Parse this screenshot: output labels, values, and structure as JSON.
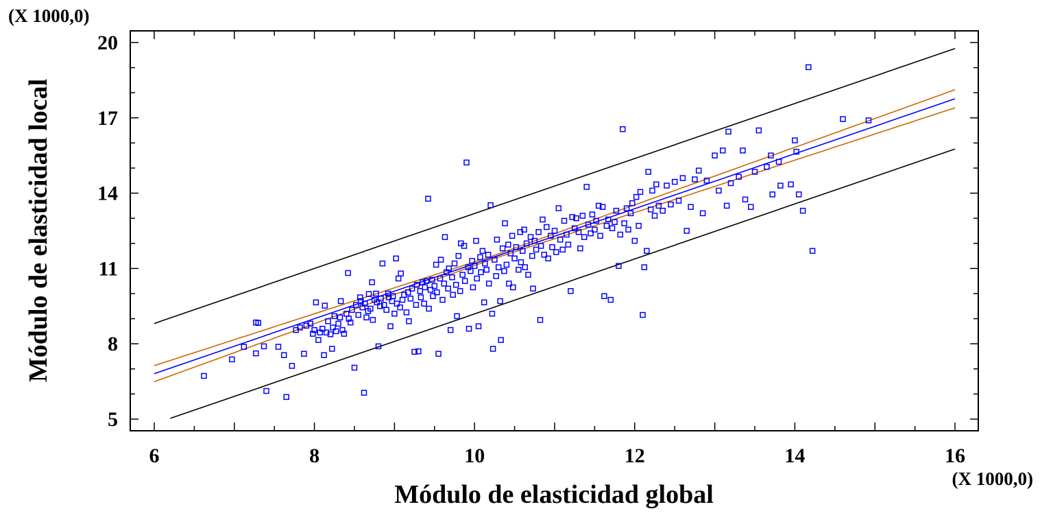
{
  "chart_data": {
    "type": "scatter",
    "title": "",
    "xlabel": "Módulo de elasticidad global",
    "ylabel": "Módulo de elasticidad local",
    "x_multiplier_label": "(X 1000,0)",
    "y_multiplier_label": "(X 1000,0)",
    "xlim": [
      6,
      16
    ],
    "ylim": [
      5,
      20
    ],
    "x_ticks": [
      6,
      8,
      10,
      12,
      14,
      16
    ],
    "y_ticks": [
      5,
      8,
      11,
      14,
      17,
      20
    ],
    "x_tick_labels": [
      "6",
      "8",
      "10",
      "12",
      "14",
      "16"
    ],
    "y_tick_labels": [
      "5",
      "8",
      "11",
      "14",
      "17",
      "20"
    ],
    "grid": false,
    "legend": "none",
    "colors": {
      "points": "#0000ff",
      "fit": "#0000ff",
      "confidence": "#cc6600",
      "prediction": "#000000",
      "axis": "#000000"
    },
    "fit_line": {
      "intercept": 0.24,
      "slope": 1.095
    },
    "confidence_band_halfwidth": {
      "at_x_min": 0.32,
      "at_x_max": 0.36,
      "center": 10.2,
      "center_halfwidth": 0.06
    },
    "prediction_band_halfwidth": 2.0,
    "series": [
      {
        "type": "scatter",
        "points": [
          [
            6.62,
            6.72
          ],
          [
            6.97,
            7.38
          ],
          [
            7.12,
            7.88
          ],
          [
            7.27,
            7.62
          ],
          [
            7.27,
            8.85
          ],
          [
            7.3,
            8.83
          ],
          [
            7.37,
            7.9
          ],
          [
            7.4,
            6.12
          ],
          [
            7.55,
            7.88
          ],
          [
            7.62,
            7.55
          ],
          [
            7.65,
            5.88
          ],
          [
            7.72,
            7.12
          ],
          [
            7.77,
            8.55
          ],
          [
            7.82,
            8.65
          ],
          [
            7.87,
            7.6
          ],
          [
            7.9,
            8.72
          ],
          [
            7.95,
            8.8
          ],
          [
            7.98,
            8.4
          ],
          [
            8.0,
            8.55
          ],
          [
            8.02,
            9.65
          ],
          [
            8.05,
            8.15
          ],
          [
            8.07,
            8.45
          ],
          [
            8.1,
            8.6
          ],
          [
            8.12,
            7.55
          ],
          [
            8.13,
            9.52
          ],
          [
            8.15,
            8.45
          ],
          [
            8.17,
            8.9
          ],
          [
            8.2,
            8.38
          ],
          [
            8.22,
            7.8
          ],
          [
            8.23,
            8.65
          ],
          [
            8.25,
            9.1
          ],
          [
            8.27,
            8.5
          ],
          [
            8.3,
            8.8
          ],
          [
            8.32,
            9.05
          ],
          [
            8.33,
            9.7
          ],
          [
            8.35,
            8.55
          ],
          [
            8.37,
            8.4
          ],
          [
            8.4,
            9.2
          ],
          [
            8.42,
            10.82
          ],
          [
            8.43,
            9.0
          ],
          [
            8.45,
            8.85
          ],
          [
            8.47,
            9.35
          ],
          [
            8.5,
            7.05
          ],
          [
            8.52,
            9.55
          ],
          [
            8.55,
            9.15
          ],
          [
            8.57,
            9.85
          ],
          [
            8.58,
            9.7
          ],
          [
            8.6,
            9.45
          ],
          [
            8.62,
            6.05
          ],
          [
            8.63,
            9.6
          ],
          [
            8.65,
            9.05
          ],
          [
            8.67,
            9.3
          ],
          [
            8.68,
            9.98
          ],
          [
            8.7,
            9.4
          ],
          [
            8.72,
            10.45
          ],
          [
            8.73,
            8.95
          ],
          [
            8.75,
            9.75
          ],
          [
            8.77,
            10.0
          ],
          [
            8.78,
            9.65
          ],
          [
            8.8,
            7.9
          ],
          [
            8.82,
            9.5
          ],
          [
            8.83,
            9.8
          ],
          [
            8.85,
            11.2
          ],
          [
            8.87,
            9.55
          ],
          [
            8.9,
            9.35
          ],
          [
            8.92,
            10.0
          ],
          [
            8.93,
            9.85
          ],
          [
            8.95,
            8.7
          ],
          [
            8.97,
            9.7
          ],
          [
            8.98,
            9.9
          ],
          [
            9.0,
            9.2
          ],
          [
            9.02,
            11.4
          ],
          [
            9.03,
            9.6
          ],
          [
            9.05,
            10.6
          ],
          [
            9.07,
            9.45
          ],
          [
            9.08,
            10.8
          ],
          [
            9.1,
            9.75
          ],
          [
            9.12,
            9.95
          ],
          [
            9.15,
            9.25
          ],
          [
            9.17,
            10.05
          ],
          [
            9.18,
            8.9
          ],
          [
            9.2,
            9.8
          ],
          [
            9.22,
            10.2
          ],
          [
            9.25,
            7.68
          ],
          [
            9.27,
            9.55
          ],
          [
            9.28,
            10.35
          ],
          [
            9.3,
            7.7
          ],
          [
            9.32,
            10.1
          ],
          [
            9.33,
            9.85
          ],
          [
            9.35,
            10.45
          ],
          [
            9.37,
            9.6
          ],
          [
            9.38,
            10.25
          ],
          [
            9.4,
            10.5
          ],
          [
            9.42,
            13.78
          ],
          [
            9.43,
            9.4
          ],
          [
            9.45,
            10.15
          ],
          [
            9.47,
            10.55
          ],
          [
            9.48,
            9.9
          ],
          [
            9.5,
            10.3
          ],
          [
            9.52,
            11.15
          ],
          [
            9.53,
            10.05
          ],
          [
            9.55,
            7.6
          ],
          [
            9.57,
            10.6
          ],
          [
            9.58,
            11.35
          ],
          [
            9.6,
            9.75
          ],
          [
            9.62,
            10.4
          ],
          [
            9.63,
            12.25
          ],
          [
            9.65,
            10.85
          ],
          [
            9.67,
            10.2
          ],
          [
            9.68,
            11.0
          ],
          [
            9.7,
            8.55
          ],
          [
            9.72,
            10.65
          ],
          [
            9.73,
            9.95
          ],
          [
            9.75,
            11.2
          ],
          [
            9.77,
            10.35
          ],
          [
            9.78,
            9.1
          ],
          [
            9.8,
            11.5
          ],
          [
            9.82,
            10.1
          ],
          [
            9.83,
            12.0
          ],
          [
            9.85,
            10.75
          ],
          [
            9.87,
            11.9
          ],
          [
            9.88,
            10.5
          ],
          [
            9.9,
            15.22
          ],
          [
            9.92,
            11.05
          ],
          [
            9.93,
            8.6
          ],
          [
            9.95,
            10.9
          ],
          [
            9.97,
            11.3
          ],
          [
            9.98,
            10.25
          ],
          [
            10.0,
            11.1
          ],
          [
            10.02,
            12.1
          ],
          [
            10.03,
            10.6
          ],
          [
            10.05,
            8.7
          ],
          [
            10.07,
            11.45
          ],
          [
            10.08,
            10.85
          ],
          [
            10.1,
            11.7
          ],
          [
            10.12,
            9.65
          ],
          [
            10.13,
            11.2
          ],
          [
            10.15,
            10.95
          ],
          [
            10.17,
            11.55
          ],
          [
            10.18,
            10.4
          ],
          [
            10.2,
            13.52
          ],
          [
            10.22,
            9.2
          ],
          [
            10.23,
            7.8
          ],
          [
            10.25,
            11.35
          ],
          [
            10.27,
            10.7
          ],
          [
            10.28,
            12.15
          ],
          [
            10.3,
            11.05
          ],
          [
            10.32,
            9.7
          ],
          [
            10.33,
            8.15
          ],
          [
            10.35,
            11.8
          ],
          [
            10.37,
            10.9
          ],
          [
            10.38,
            12.8
          ],
          [
            10.4,
            11.15
          ],
          [
            10.42,
            11.95
          ],
          [
            10.43,
            10.4
          ],
          [
            10.45,
            11.6
          ],
          [
            10.47,
            12.3
          ],
          [
            10.48,
            10.25
          ],
          [
            10.5,
            11.4
          ],
          [
            10.52,
            11.85
          ],
          [
            10.55,
            10.95
          ],
          [
            10.57,
            12.45
          ],
          [
            10.58,
            11.25
          ],
          [
            10.6,
            11.7
          ],
          [
            10.62,
            12.55
          ],
          [
            10.63,
            11.05
          ],
          [
            10.65,
            12.0
          ],
          [
            10.67,
            10.75
          ],
          [
            10.7,
            12.25
          ],
          [
            10.72,
            11.5
          ],
          [
            10.73,
            10.2
          ],
          [
            10.75,
            12.1
          ],
          [
            10.77,
            11.75
          ],
          [
            10.8,
            12.45
          ],
          [
            10.82,
            8.95
          ],
          [
            10.83,
            11.9
          ],
          [
            10.85,
            12.95
          ],
          [
            10.87,
            11.55
          ],
          [
            10.9,
            12.65
          ],
          [
            10.92,
            11.4
          ],
          [
            10.95,
            12.3
          ],
          [
            10.97,
            11.85
          ],
          [
            11.0,
            12.5
          ],
          [
            11.02,
            11.65
          ],
          [
            11.05,
            13.4
          ],
          [
            11.07,
            12.15
          ],
          [
            11.1,
            11.75
          ],
          [
            11.12,
            12.9
          ],
          [
            11.15,
            12.35
          ],
          [
            11.17,
            11.95
          ],
          [
            11.2,
            10.1
          ],
          [
            11.22,
            13.05
          ],
          [
            11.25,
            12.6
          ],
          [
            11.27,
            13.0
          ],
          [
            11.3,
            12.45
          ],
          [
            11.32,
            11.8
          ],
          [
            11.35,
            13.1
          ],
          [
            11.37,
            12.25
          ],
          [
            11.4,
            14.25
          ],
          [
            11.42,
            12.75
          ],
          [
            11.45,
            12.4
          ],
          [
            11.47,
            13.15
          ],
          [
            11.5,
            12.55
          ],
          [
            11.52,
            12.9
          ],
          [
            11.55,
            13.5
          ],
          [
            11.57,
            12.3
          ],
          [
            11.6,
            13.45
          ],
          [
            11.62,
            9.9
          ],
          [
            11.65,
            12.7
          ],
          [
            11.67,
            12.95
          ],
          [
            11.7,
            9.75
          ],
          [
            11.72,
            12.6
          ],
          [
            11.75,
            12.85
          ],
          [
            11.77,
            13.3
          ],
          [
            11.8,
            11.1
          ],
          [
            11.82,
            12.35
          ],
          [
            11.85,
            16.55
          ],
          [
            11.87,
            12.8
          ],
          [
            11.9,
            13.4
          ],
          [
            11.92,
            12.55
          ],
          [
            11.95,
            13.2
          ],
          [
            11.97,
            13.6
          ],
          [
            12.0,
            12.1
          ],
          [
            12.02,
            13.85
          ],
          [
            12.05,
            12.7
          ],
          [
            12.07,
            14.05
          ],
          [
            12.1,
            9.15
          ],
          [
            12.12,
            11.05
          ],
          [
            12.15,
            11.7
          ],
          [
            12.17,
            14.85
          ],
          [
            12.2,
            13.35
          ],
          [
            12.22,
            14.1
          ],
          [
            12.25,
            13.1
          ],
          [
            12.27,
            14.35
          ],
          [
            12.3,
            13.5
          ],
          [
            12.35,
            13.3
          ],
          [
            12.4,
            14.3
          ],
          [
            12.45,
            13.55
          ],
          [
            12.5,
            14.45
          ],
          [
            12.55,
            13.7
          ],
          [
            12.6,
            14.6
          ],
          [
            12.65,
            12.5
          ],
          [
            12.7,
            13.45
          ],
          [
            12.75,
            14.55
          ],
          [
            12.8,
            14.9
          ],
          [
            12.85,
            13.2
          ],
          [
            12.9,
            14.5
          ],
          [
            13.0,
            15.5
          ],
          [
            13.05,
            14.1
          ],
          [
            13.1,
            15.7
          ],
          [
            13.15,
            13.5
          ],
          [
            13.17,
            16.45
          ],
          [
            13.2,
            14.4
          ],
          [
            13.3,
            14.65
          ],
          [
            13.35,
            15.7
          ],
          [
            13.38,
            13.75
          ],
          [
            13.45,
            13.45
          ],
          [
            13.5,
            14.85
          ],
          [
            13.55,
            16.5
          ],
          [
            13.65,
            15.05
          ],
          [
            13.7,
            15.5
          ],
          [
            13.72,
            13.95
          ],
          [
            13.8,
            15.25
          ],
          [
            13.82,
            14.3
          ],
          [
            13.95,
            14.35
          ],
          [
            14.0,
            16.1
          ],
          [
            14.02,
            15.65
          ],
          [
            14.05,
            13.95
          ],
          [
            14.1,
            13.3
          ],
          [
            14.17,
            19.02
          ],
          [
            14.22,
            11.7
          ],
          [
            14.6,
            16.95
          ],
          [
            14.92,
            16.9
          ]
        ]
      }
    ]
  }
}
